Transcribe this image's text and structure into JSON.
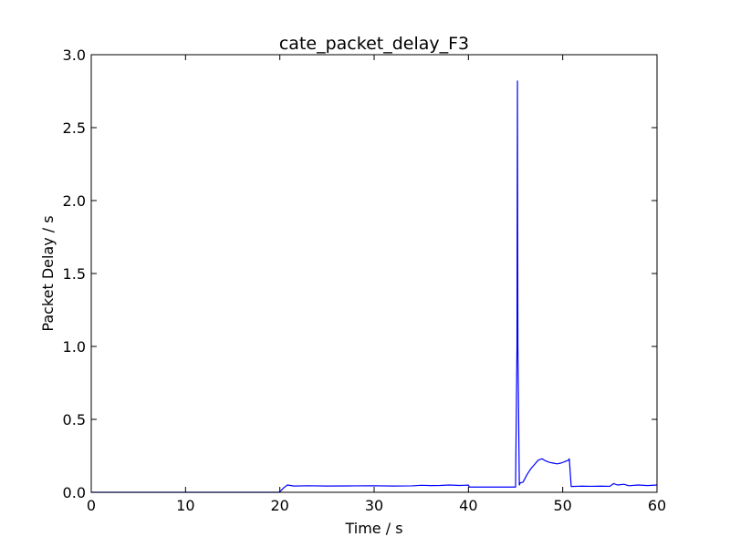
{
  "chart_data": {
    "type": "line",
    "title": "cate_packet_delay_F3",
    "xlabel": "Time / s",
    "ylabel": "Packet Delay / s",
    "xlim": [
      0,
      60
    ],
    "ylim": [
      0,
      3.0
    ],
    "xticks": [
      0,
      10,
      20,
      30,
      40,
      50,
      60
    ],
    "xtick_labels": [
      "0",
      "10",
      "20",
      "30",
      "40",
      "50",
      "60"
    ],
    "yticks": [
      0,
      0.5,
      1.0,
      1.5,
      2.0,
      2.5,
      3.0
    ],
    "ytick_labels": [
      "0.0",
      "0.5",
      "1.0",
      "1.5",
      "2.0",
      "2.5",
      "3.0"
    ],
    "grid": false,
    "line_color": "#0000ff",
    "series": [
      {
        "x": [
          0,
          19.9,
          20.1,
          20.4,
          20.8,
          21.5,
          23,
          25,
          28,
          30,
          32,
          34,
          35,
          36,
          37,
          38,
          39,
          40,
          40.1,
          42,
          44,
          45.0,
          45.15,
          45.2,
          45.25,
          45.4,
          45.5,
          45.8,
          46.2,
          46.6,
          47.0,
          47.4,
          47.8,
          48.2,
          48.6,
          49.0,
          49.4,
          49.8,
          50.2,
          50.6,
          50.7,
          50.9,
          52,
          53,
          54,
          55,
          55.4,
          55.8,
          56.5,
          57,
          58,
          59,
          60
        ],
        "y": [
          0.0,
          0.0,
          0.01,
          0.03,
          0.05,
          0.043,
          0.045,
          0.043,
          0.044,
          0.045,
          0.043,
          0.044,
          0.048,
          0.046,
          0.047,
          0.05,
          0.047,
          0.049,
          0.036,
          0.036,
          0.036,
          0.036,
          1.0,
          2.82,
          1.0,
          0.05,
          0.065,
          0.07,
          0.12,
          0.16,
          0.19,
          0.22,
          0.23,
          0.215,
          0.205,
          0.2,
          0.195,
          0.2,
          0.21,
          0.22,
          0.23,
          0.04,
          0.042,
          0.041,
          0.042,
          0.041,
          0.06,
          0.05,
          0.055,
          0.045,
          0.05,
          0.046,
          0.05
        ]
      }
    ]
  }
}
